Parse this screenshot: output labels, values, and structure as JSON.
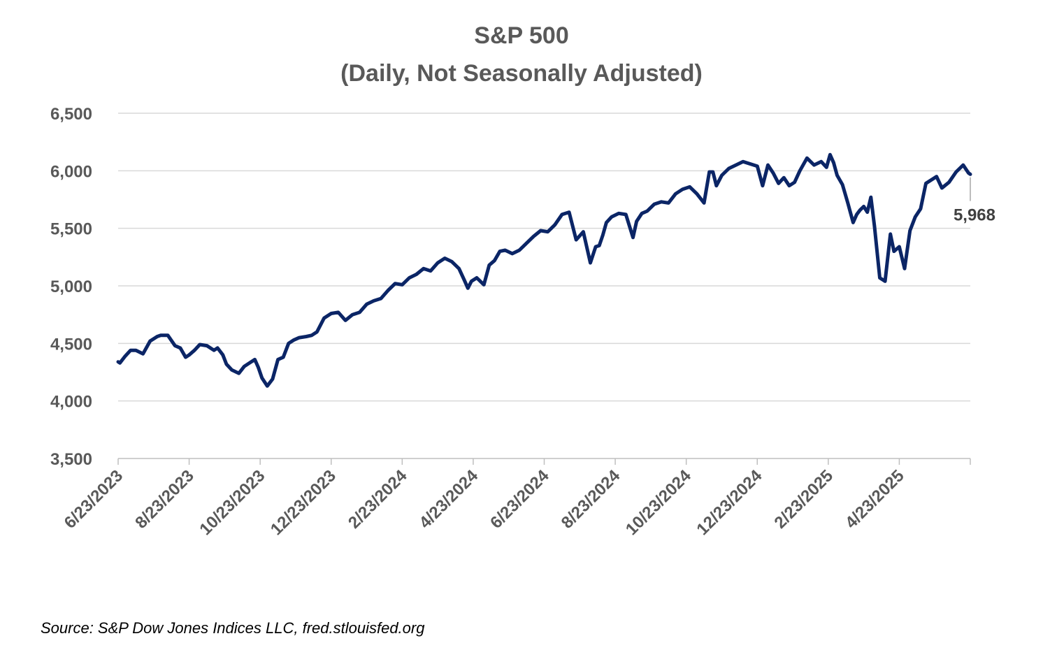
{
  "chart_data": {
    "type": "line",
    "title": "S&P 500",
    "subtitle": "(Daily, Not Seasonally Adjusted)",
    "xlabel": "",
    "ylabel": "",
    "ylim": [
      3500,
      6500
    ],
    "y_ticks": [
      3500,
      4000,
      4500,
      5000,
      5500,
      6000,
      6500
    ],
    "y_tick_labels": [
      "3,500",
      "4,000",
      "4,500",
      "5,000",
      "5,500",
      "6,000",
      "6,500"
    ],
    "x_tick_labels": [
      "6/23/2023",
      "8/23/2023",
      "10/23/2023",
      "12/23/2023",
      "2/23/2024",
      "4/23/2024",
      "6/23/2024",
      "8/23/2024",
      "10/23/2024",
      "12/23/2024",
      "2/23/2025",
      "4/23/2025"
    ],
    "x_range_months": [
      0,
      24
    ],
    "grid": true,
    "series": [
      {
        "name": "S&P 500",
        "color": "#0B2566",
        "x": [
          0,
          0.05,
          0.2,
          0.35,
          0.5,
          0.7,
          0.9,
          1.1,
          1.2,
          1.4,
          1.6,
          1.75,
          1.9,
          2.0,
          2.15,
          2.3,
          2.5,
          2.7,
          2.8,
          2.95,
          3.05,
          3.2,
          3.4,
          3.55,
          3.7,
          3.85,
          3.95,
          4.05,
          4.2,
          4.35,
          4.5,
          4.65,
          4.8,
          4.95,
          5.1,
          5.3,
          5.45,
          5.6,
          5.8,
          6.0,
          6.2,
          6.4,
          6.6,
          6.8,
          7.0,
          7.2,
          7.4,
          7.6,
          7.8,
          8.0,
          8.2,
          8.4,
          8.6,
          8.8,
          9.0,
          9.2,
          9.4,
          9.6,
          9.75,
          9.85,
          9.95,
          10.1,
          10.3,
          10.45,
          10.6,
          10.75,
          10.9,
          11.1,
          11.3,
          11.5,
          11.7,
          11.9,
          12.1,
          12.3,
          12.5,
          12.7,
          12.9,
          13.1,
          13.3,
          13.45,
          13.55,
          13.65,
          13.75,
          13.9,
          14.1,
          14.3,
          14.5,
          14.6,
          14.75,
          14.9,
          15.1,
          15.3,
          15.5,
          15.7,
          15.9,
          16.1,
          16.3,
          16.5,
          16.65,
          16.75,
          16.85,
          17.0,
          17.2,
          17.4,
          17.6,
          17.8,
          18.0,
          18.15,
          18.3,
          18.45,
          18.6,
          18.75,
          18.9,
          19.05,
          19.2,
          19.4,
          19.6,
          19.8,
          19.95,
          20.05,
          20.15,
          20.25,
          20.4,
          20.55,
          20.7,
          20.8,
          20.9,
          21.0,
          21.1,
          21.2,
          21.3,
          21.45,
          21.6,
          21.75,
          21.85,
          22.0,
          22.15,
          22.3,
          22.45,
          22.6,
          22.75,
          22.9,
          23.05,
          23.2,
          23.4,
          23.6,
          23.8,
          23.95,
          24.0
        ],
        "values": [
          4340,
          4330,
          4390,
          4440,
          4440,
          4410,
          4520,
          4560,
          4570,
          4570,
          4480,
          4460,
          4380,
          4400,
          4440,
          4490,
          4480,
          4440,
          4460,
          4400,
          4320,
          4270,
          4240,
          4300,
          4330,
          4360,
          4290,
          4200,
          4130,
          4190,
          4360,
          4380,
          4500,
          4530,
          4550,
          4560,
          4570,
          4600,
          4720,
          4760,
          4770,
          4700,
          4750,
          4770,
          4840,
          4870,
          4890,
          4960,
          5020,
          5010,
          5070,
          5100,
          5150,
          5130,
          5200,
          5240,
          5210,
          5150,
          5050,
          4980,
          5040,
          5070,
          5010,
          5180,
          5220,
          5300,
          5310,
          5280,
          5310,
          5370,
          5430,
          5480,
          5470,
          5530,
          5620,
          5640,
          5400,
          5470,
          5200,
          5340,
          5350,
          5440,
          5550,
          5600,
          5630,
          5620,
          5420,
          5560,
          5630,
          5650,
          5710,
          5730,
          5720,
          5800,
          5840,
          5860,
          5800,
          5720,
          5990,
          5990,
          5870,
          5960,
          6020,
          6050,
          6080,
          6060,
          6040,
          5870,
          6050,
          5980,
          5890,
          5940,
          5870,
          5900,
          6000,
          6110,
          6050,
          6080,
          6030,
          6140,
          6070,
          5960,
          5880,
          5720,
          5550,
          5620,
          5660,
          5690,
          5640,
          5770,
          5520,
          5070,
          5040,
          5450,
          5300,
          5340,
          5150,
          5480,
          5600,
          5670,
          5890,
          5920,
          5950,
          5850,
          5900,
          5990,
          6050,
          5980,
          5970
        ]
      }
    ],
    "annotations": [
      {
        "label": "5,968",
        "x": 24.0,
        "y": 5968
      }
    ]
  },
  "source_text": "Source: S&P Dow Jones Indices LLC, fred.stlouisfed.org"
}
